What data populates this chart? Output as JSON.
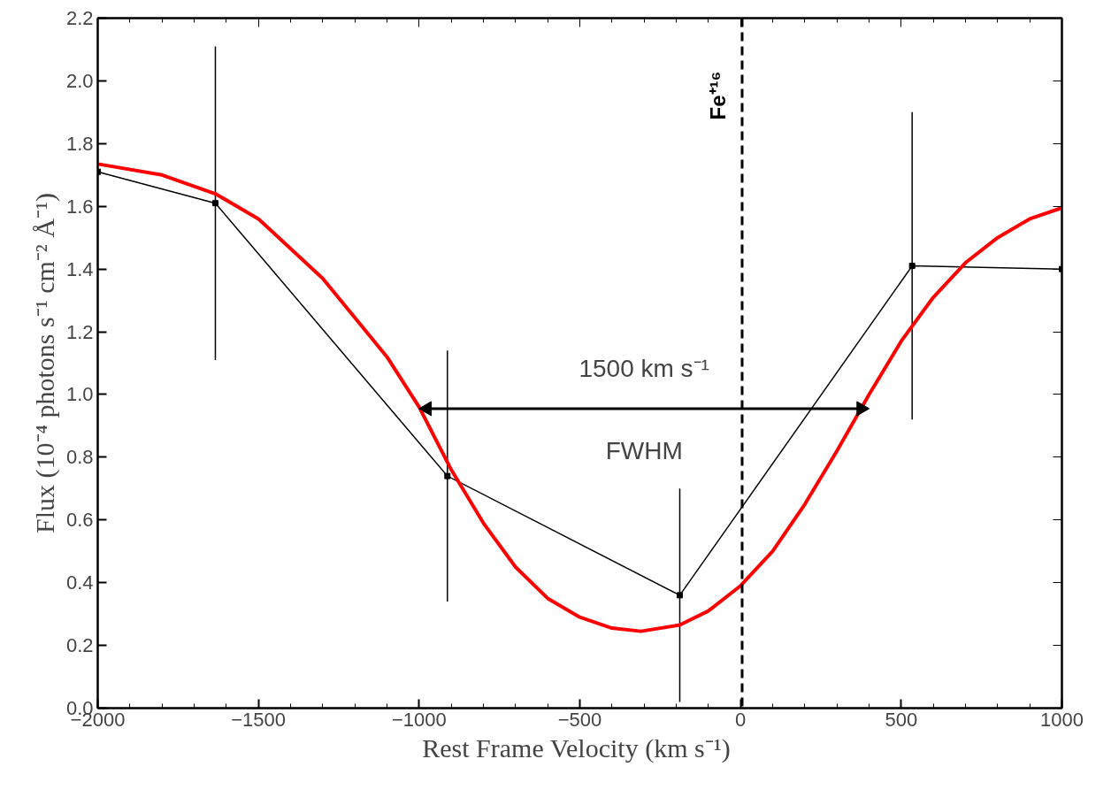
{
  "chart_data": {
    "type": "line",
    "xlabel": "Rest Frame Velocity  (km s⁻¹)",
    "ylabel": "Flux (10⁻⁴ photons s⁻¹ cm⁻² Å⁻¹)",
    "xlim": [
      -2000,
      1000
    ],
    "xticks": [
      -2000,
      -1500,
      -1000,
      -500,
      0,
      500,
      1000
    ],
    "ylim": [
      0,
      2.2
    ],
    "yticks": [
      {
        "value": 0,
        "label": "0.0"
      },
      {
        "value": 0.2,
        "label": "0.2"
      },
      {
        "value": 0.4,
        "label": "0.4"
      },
      {
        "value": 0.6,
        "label": "0.6"
      },
      {
        "value": 0.8,
        "label": "0.8"
      },
      {
        "value": 1.0,
        "label": "1.0"
      },
      {
        "value": 1.2,
        "label": "1.2"
      },
      {
        "value": 1.4,
        "label": "1.4"
      },
      {
        "value": 1.6,
        "label": "1.6"
      },
      {
        "value": 1.8,
        "label": "1.8"
      },
      {
        "value": 2.0,
        "label": "2.0"
      },
      {
        "value": 2.2,
        "label": "2.2"
      }
    ],
    "grid": false,
    "series": [
      {
        "color": "#000000",
        "marker": "square",
        "x": [
          -2000,
          -1634,
          -912,
          -189,
          534,
          1000
        ],
        "values": [
          1.71,
          1.61,
          0.74,
          0.36,
          1.41,
          1.4
        ],
        "errors": [
          null,
          0.5,
          0.4,
          0.34,
          0.49,
          null
        ]
      },
      {
        "color": "#ff0000",
        "marker": "none",
        "x": [
          -2000,
          -1800,
          -1634,
          -1500,
          -1300,
          -1100,
          -1000,
          -900,
          -800,
          -700,
          -600,
          -500,
          -400,
          -310,
          -189,
          -100,
          0,
          100,
          200,
          300,
          400,
          500,
          600,
          700,
          800,
          900,
          1000
        ],
        "values": [
          1.735,
          1.7,
          1.64,
          1.56,
          1.37,
          1.12,
          0.96,
          0.76,
          0.59,
          0.45,
          0.35,
          0.29,
          0.255,
          0.245,
          0.265,
          0.31,
          0.39,
          0.5,
          0.65,
          0.82,
          1.0,
          1.17,
          1.31,
          1.42,
          1.5,
          1.56,
          1.595
        ]
      },
      {
        "type": "line",
        "color": "#000000",
        "marker": "triangle",
        "x": [
          -975,
          375
        ],
        "values": [
          0.955,
          0.955
        ]
      }
    ],
    "ref_lines": [
      {
        "axis": "x",
        "value": 5,
        "label": "Fe⁺¹⁶",
        "color": "#000000",
        "line_style": "dashed"
      }
    ],
    "annotations": [
      "1500 km s⁻¹",
      "FWHM"
    ]
  }
}
